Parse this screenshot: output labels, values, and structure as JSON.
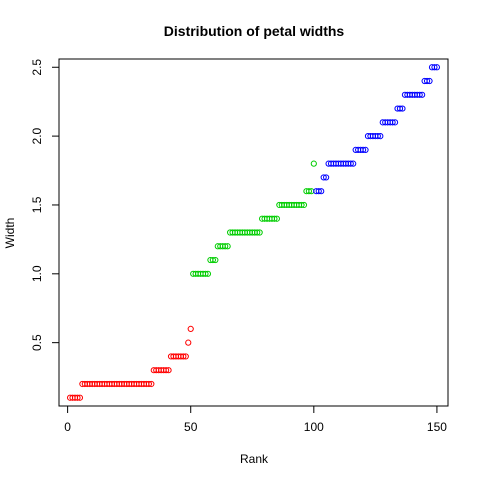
{
  "chart_data": {
    "type": "scatter",
    "title": "Distribution of petal widths",
    "xlabel": "Rank",
    "ylabel": "Width",
    "xlim": [
      -3.5,
      154.5
    ],
    "ylim": [
      0.04,
      2.56
    ],
    "x_ticks": [
      0,
      50,
      100,
      150
    ],
    "y_ticks": [
      0.5,
      1.0,
      1.5,
      2.0,
      2.5
    ],
    "x_tick_labels": [
      "0",
      "50",
      "100",
      "150"
    ],
    "y_tick_labels": [
      "0.5",
      "1.0",
      "1.5",
      "2.0",
      "2.5"
    ],
    "grid": false,
    "legend": "none",
    "marker": "open-circle",
    "series_colors": [
      "#FF0000",
      "#00CD00",
      "#0000FF"
    ],
    "series": [
      {
        "x": [
          1,
          2,
          3,
          4,
          5,
          6,
          7,
          8,
          9,
          10,
          11,
          12,
          13,
          14,
          15,
          16,
          17,
          18,
          19,
          20,
          21,
          22,
          23,
          24,
          25,
          26,
          27,
          28,
          29,
          30,
          31,
          32,
          33,
          34,
          35,
          36,
          37,
          38,
          39,
          40,
          41,
          42,
          43,
          44,
          45,
          46,
          47,
          48,
          49,
          50
        ],
        "values": [
          0.1,
          0.1,
          0.1,
          0.1,
          0.1,
          0.2,
          0.2,
          0.2,
          0.2,
          0.2,
          0.2,
          0.2,
          0.2,
          0.2,
          0.2,
          0.2,
          0.2,
          0.2,
          0.2,
          0.2,
          0.2,
          0.2,
          0.2,
          0.2,
          0.2,
          0.2,
          0.2,
          0.2,
          0.2,
          0.2,
          0.2,
          0.2,
          0.2,
          0.2,
          0.3,
          0.3,
          0.3,
          0.3,
          0.3,
          0.3,
          0.3,
          0.4,
          0.4,
          0.4,
          0.4,
          0.4,
          0.4,
          0.4,
          0.5,
          0.6
        ]
      },
      {
        "x": [
          51,
          52,
          53,
          54,
          55,
          56,
          57,
          58,
          59,
          60,
          61,
          62,
          63,
          64,
          65,
          66,
          67,
          68,
          69,
          70,
          71,
          72,
          73,
          74,
          75,
          76,
          77,
          78,
          79,
          80,
          81,
          82,
          83,
          84,
          85,
          86,
          87,
          88,
          89,
          90,
          91,
          92,
          93,
          94,
          95,
          96,
          97,
          98,
          99,
          100
        ],
        "values": [
          1.0,
          1.0,
          1.0,
          1.0,
          1.0,
          1.0,
          1.0,
          1.1,
          1.1,
          1.1,
          1.2,
          1.2,
          1.2,
          1.2,
          1.2,
          1.3,
          1.3,
          1.3,
          1.3,
          1.3,
          1.3,
          1.3,
          1.3,
          1.3,
          1.3,
          1.3,
          1.3,
          1.3,
          1.4,
          1.4,
          1.4,
          1.4,
          1.4,
          1.4,
          1.4,
          1.5,
          1.5,
          1.5,
          1.5,
          1.5,
          1.5,
          1.5,
          1.5,
          1.5,
          1.5,
          1.5,
          1.6,
          1.6,
          1.6,
          1.8
        ]
      },
      {
        "x": [
          101,
          102,
          103,
          104,
          105,
          106,
          107,
          108,
          109,
          110,
          111,
          112,
          113,
          114,
          115,
          116,
          117,
          118,
          119,
          120,
          121,
          122,
          123,
          124,
          125,
          126,
          127,
          128,
          129,
          130,
          131,
          132,
          133,
          134,
          135,
          136,
          137,
          138,
          139,
          140,
          141,
          142,
          143,
          144,
          145,
          146,
          147,
          148,
          149,
          150
        ],
        "values": [
          1.6,
          1.6,
          1.6,
          1.7,
          1.7,
          1.8,
          1.8,
          1.8,
          1.8,
          1.8,
          1.8,
          1.8,
          1.8,
          1.8,
          1.8,
          1.8,
          1.9,
          1.9,
          1.9,
          1.9,
          1.9,
          2.0,
          2.0,
          2.0,
          2.0,
          2.0,
          2.0,
          2.1,
          2.1,
          2.1,
          2.1,
          2.1,
          2.1,
          2.2,
          2.2,
          2.2,
          2.3,
          2.3,
          2.3,
          2.3,
          2.3,
          2.3,
          2.3,
          2.3,
          2.4,
          2.4,
          2.4,
          2.5,
          2.5,
          2.5
        ]
      }
    ]
  }
}
